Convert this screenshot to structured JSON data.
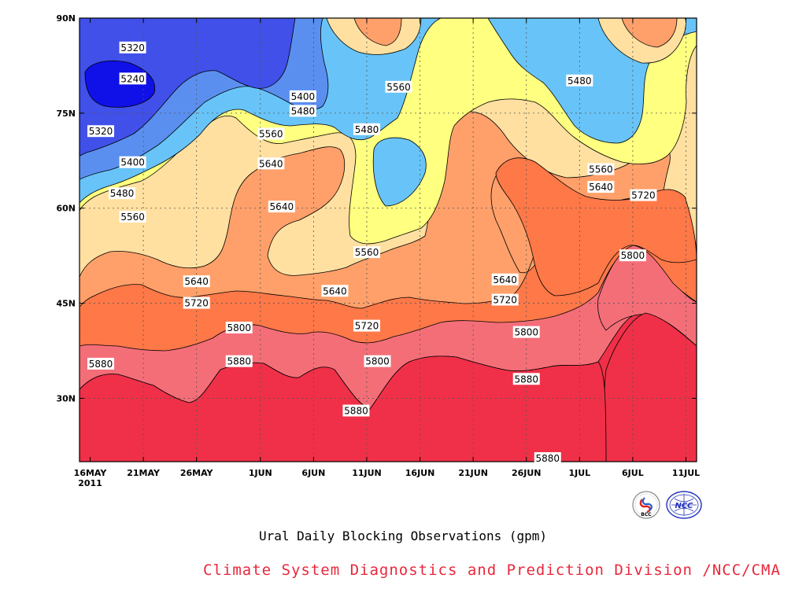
{
  "chart_data": {
    "type": "contour",
    "title": "Ural Daily Blocking Observations (gpm)",
    "credit": "Climate System Diagnostics and Prediction Division /NCC/CMA",
    "credit_color": "#e8283c",
    "xaxis": {
      "ticks": [
        "16MAY",
        "21MAY",
        "26MAY",
        "1JUN",
        "6JUN",
        "11JUN",
        "16JUN",
        "21JUN",
        "26JUN",
        "1JUL",
        "6JUL",
        "11JUL"
      ],
      "year_label": "2011",
      "range": [
        "2011-05-15",
        "2011-07-12"
      ]
    },
    "yaxis": {
      "ticks": [
        "30N",
        "45N",
        "60N",
        "75N",
        "90N"
      ],
      "tick_values": [
        30,
        45,
        60,
        75,
        90
      ],
      "range": [
        20,
        90
      ]
    },
    "grid": true,
    "levels": [
      5240,
      5320,
      5400,
      5480,
      5560,
      5640,
      5720,
      5800,
      5880
    ],
    "level_colors": [
      "#1010e8",
      "#4050e8",
      "#5a8ff0",
      "#68c4f8",
      "#ffff80",
      "#ffe0a0",
      "#ffa06a",
      "#ff7848",
      "#f46e78",
      "#f03048"
    ],
    "contour_labels": [
      {
        "text": "5320",
        "date": "2011-05-20",
        "lat": 85.3
      },
      {
        "text": "5240",
        "date": "2011-05-20",
        "lat": 80.4
      },
      {
        "text": "5320",
        "date": "2011-05-17",
        "lat": 72.1
      },
      {
        "text": "5400",
        "date": "2011-05-20",
        "lat": 67.2
      },
      {
        "text": "5480",
        "date": "2011-05-19",
        "lat": 62.3
      },
      {
        "text": "5560",
        "date": "2011-05-20",
        "lat": 58.6
      },
      {
        "text": "5640",
        "date": "2011-05-26",
        "lat": 48.4
      },
      {
        "text": "5720",
        "date": "2011-05-26",
        "lat": 45.0
      },
      {
        "text": "5800",
        "date": "2011-05-30",
        "lat": 41.1
      },
      {
        "text": "5880",
        "date": "2011-05-17",
        "lat": 35.4
      },
      {
        "text": "5880",
        "date": "2011-05-30",
        "lat": 35.8
      },
      {
        "text": "5400",
        "date": "2011-06-05",
        "lat": 77.6
      },
      {
        "text": "5480",
        "date": "2011-06-05",
        "lat": 75.3
      },
      {
        "text": "5560",
        "date": "2011-06-02",
        "lat": 71.7
      },
      {
        "text": "5640",
        "date": "2011-06-02",
        "lat": 67.0
      },
      {
        "text": "5640",
        "date": "2011-06-03",
        "lat": 60.2
      },
      {
        "text": "5480",
        "date": "2011-06-11",
        "lat": 72.4
      },
      {
        "text": "5560",
        "date": "2011-06-14",
        "lat": 79.1
      },
      {
        "text": "5560",
        "date": "2011-06-11",
        "lat": 53.0
      },
      {
        "text": "5640",
        "date": "2011-06-08",
        "lat": 46.9
      },
      {
        "text": "5720",
        "date": "2011-06-11",
        "lat": 41.4
      },
      {
        "text": "5800",
        "date": "2011-06-12",
        "lat": 35.8
      },
      {
        "text": "5880",
        "date": "2011-06-10",
        "lat": 28.0
      },
      {
        "text": "5640",
        "date": "2011-06-24",
        "lat": 48.7
      },
      {
        "text": "5720",
        "date": "2011-06-24",
        "lat": 45.5
      },
      {
        "text": "5800",
        "date": "2011-06-26",
        "lat": 40.4
      },
      {
        "text": "5880",
        "date": "2011-06-26",
        "lat": 33.0
      },
      {
        "text": "5880",
        "date": "2011-06-28",
        "lat": 20.5
      },
      {
        "text": "5480",
        "date": "2011-07-01",
        "lat": 80.1
      },
      {
        "text": "5560",
        "date": "2011-07-03",
        "lat": 66.1
      },
      {
        "text": "5640",
        "date": "2011-07-03",
        "lat": 63.3
      },
      {
        "text": "5720",
        "date": "2011-07-07",
        "lat": 62.0
      },
      {
        "text": "5800",
        "date": "2011-07-06",
        "lat": 52.5
      }
    ]
  },
  "logos": {
    "left": {
      "label": "BCC",
      "color": "#1a2a9a"
    },
    "right": {
      "label": "NCC",
      "color": "#2233bb"
    }
  }
}
